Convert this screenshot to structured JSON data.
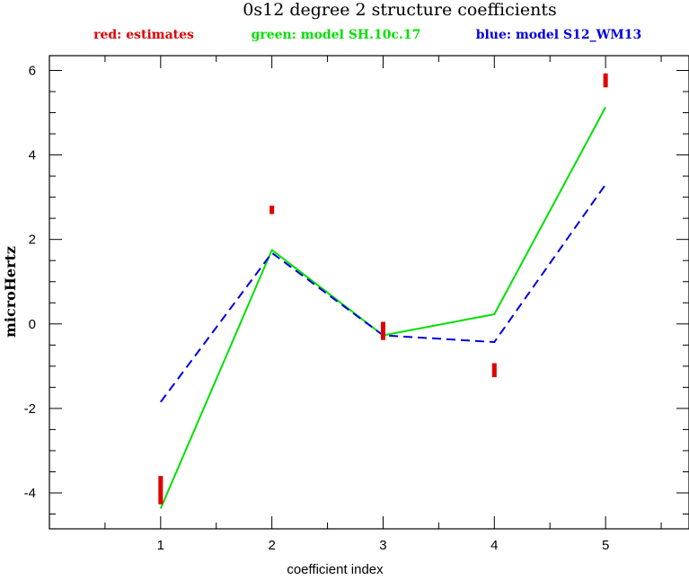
{
  "chart_data": {
    "type": "line",
    "title": "0s12 degree 2 structure coefficients",
    "legend": [
      {
        "text": "red: estimates",
        "color": "#e00000"
      },
      {
        "text": "green: model SH.10c.17",
        "color": "#00e000"
      },
      {
        "text": "blue: model S12_WM13",
        "color": "#0000e0"
      }
    ],
    "xlabel": "coefficient index",
    "ylabel": "microHertz",
    "xlim": [
      0.0,
      5.75
    ],
    "ylim": [
      -4.85,
      6.35
    ],
    "xticks": [
      "1",
      "2",
      "3",
      "4",
      "5"
    ],
    "yticks": [
      "-4",
      "-2",
      "0",
      "2",
      "4",
      "6"
    ],
    "series": [
      {
        "color": "#00e000",
        "style": "solid",
        "x": [
          1,
          2,
          3,
          4,
          5
        ],
        "y": [
          -4.37,
          1.75,
          -0.27,
          0.23,
          5.13
        ]
      },
      {
        "color": "#0000e0",
        "style": "dashed",
        "x": [
          1,
          2,
          3,
          4,
          5
        ],
        "y": [
          -1.85,
          1.68,
          -0.27,
          -0.43,
          3.3
        ]
      }
    ],
    "estimates": {
      "color": "#e00000",
      "x": [
        1,
        2,
        3,
        4,
        5
      ],
      "low": [
        -4.27,
        2.6,
        -0.38,
        -1.26,
        5.6
      ],
      "high": [
        -3.6,
        2.8,
        0.05,
        -0.93,
        5.93
      ]
    }
  }
}
